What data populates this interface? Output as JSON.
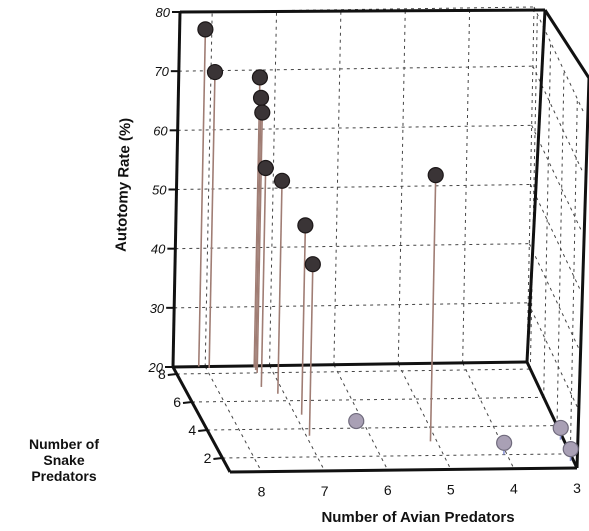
{
  "chart_data": {
    "type": "scatter",
    "subtype": "3d-stem",
    "title": "",
    "xlabel": "Number of Avian Predators",
    "ylabel": "Number of Snake Predators",
    "zlabel": "Autotomy Rate (%)",
    "ylabel_lines": [
      "Number of",
      "Snake",
      "Predators"
    ],
    "x_ticks": [
      "8",
      "7",
      "6",
      "5",
      "4",
      "3"
    ],
    "y_ticks": [
      "2",
      "4",
      "6",
      "8"
    ],
    "z_ticks": [
      "20",
      "30",
      "40",
      "50",
      "60",
      "70",
      "80"
    ],
    "xlim": [
      8.5,
      3
    ],
    "ylim": [
      1,
      8.5
    ],
    "zlim": [
      20,
      80
    ],
    "grid": true,
    "legend": "none",
    "colors": {
      "high_marker": "#3a3436",
      "high_stem": "#a07d74",
      "low_marker": "#a9a0b5",
      "low_stem": "#8f98d8",
      "box": "#111111",
      "grid": "#444444"
    },
    "points": [
      {
        "x": 8.1,
        "y": 8.5,
        "z": 77
      },
      {
        "x": 7.95,
        "y": 8.4,
        "z": 70
      },
      {
        "x": 7.25,
        "y": 8.4,
        "z": 69
      },
      {
        "x": 7.25,
        "y": 8.2,
        "z": 66
      },
      {
        "x": 7.25,
        "y": 8.0,
        "z": 64
      },
      {
        "x": 7.3,
        "y": 7.0,
        "z": 57
      },
      {
        "x": 7.1,
        "y": 6.5,
        "z": 56
      },
      {
        "x": 6.9,
        "y": 5.0,
        "z": 52
      },
      {
        "x": 6.95,
        "y": 3.5,
        "z": 49
      },
      {
        "x": 5.1,
        "y": 3.0,
        "z": 65
      },
      {
        "x": 6.1,
        "y": 4.5,
        "z": 20
      },
      {
        "x": 4.05,
        "y": 2.0,
        "z": 22
      },
      {
        "x": 3.05,
        "y": 3.0,
        "z": 22
      },
      {
        "x": 3.05,
        "y": 1.5,
        "z": 22
      }
    ]
  }
}
